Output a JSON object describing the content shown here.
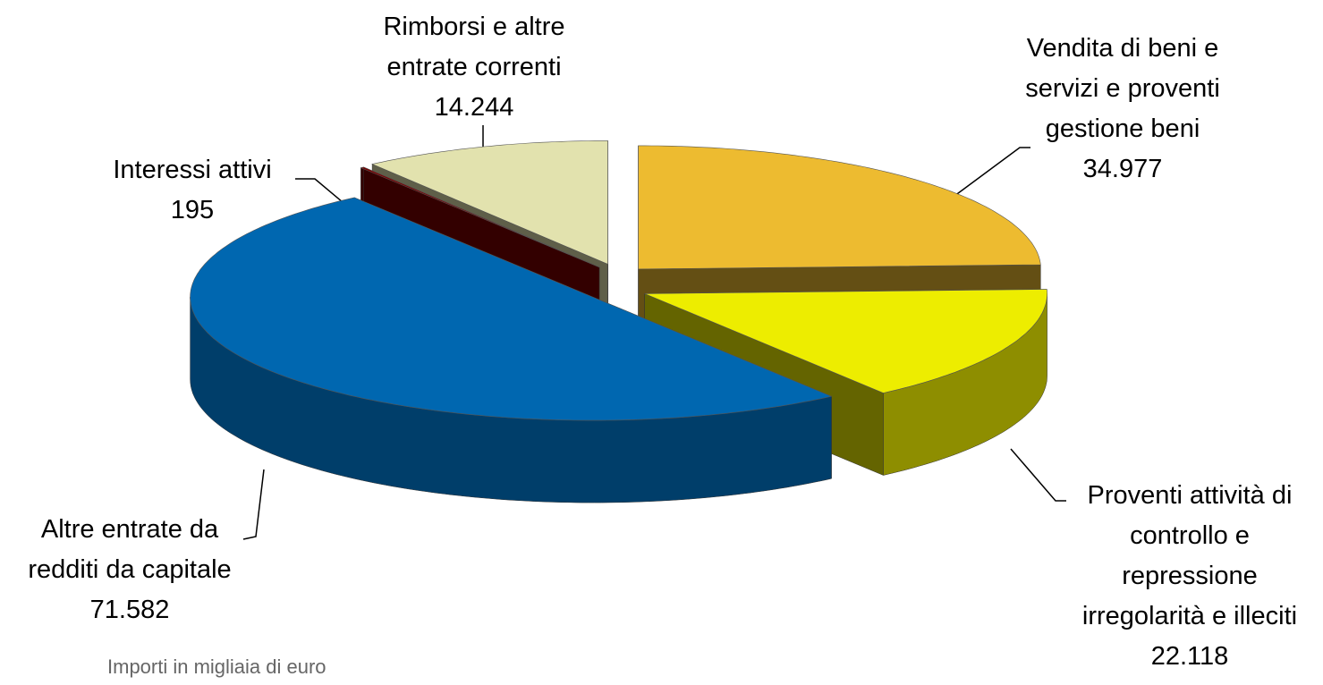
{
  "chart_data": {
    "type": "pie",
    "categories": [
      "Vendita di beni e\nservizi e proventi\ngestione beni",
      "Proventi attività di\ncontrollo e\nrepressione\nirregolarità e illeciti",
      "Altre entrate da\nredditi da capitale",
      "Interessi attivi",
      "Rimborsi e altre\nentrate correnti"
    ],
    "values": [
      34977,
      22118,
      71582,
      195,
      14244
    ],
    "value_labels": [
      "34.977",
      "22.118",
      "71.582",
      "195",
      "14.244"
    ],
    "colors": [
      "#edbb30",
      "#eded00",
      "#0067b0",
      "#7a0000",
      "#e2e2ae"
    ],
    "note": "Importi in migliaia di euro"
  }
}
